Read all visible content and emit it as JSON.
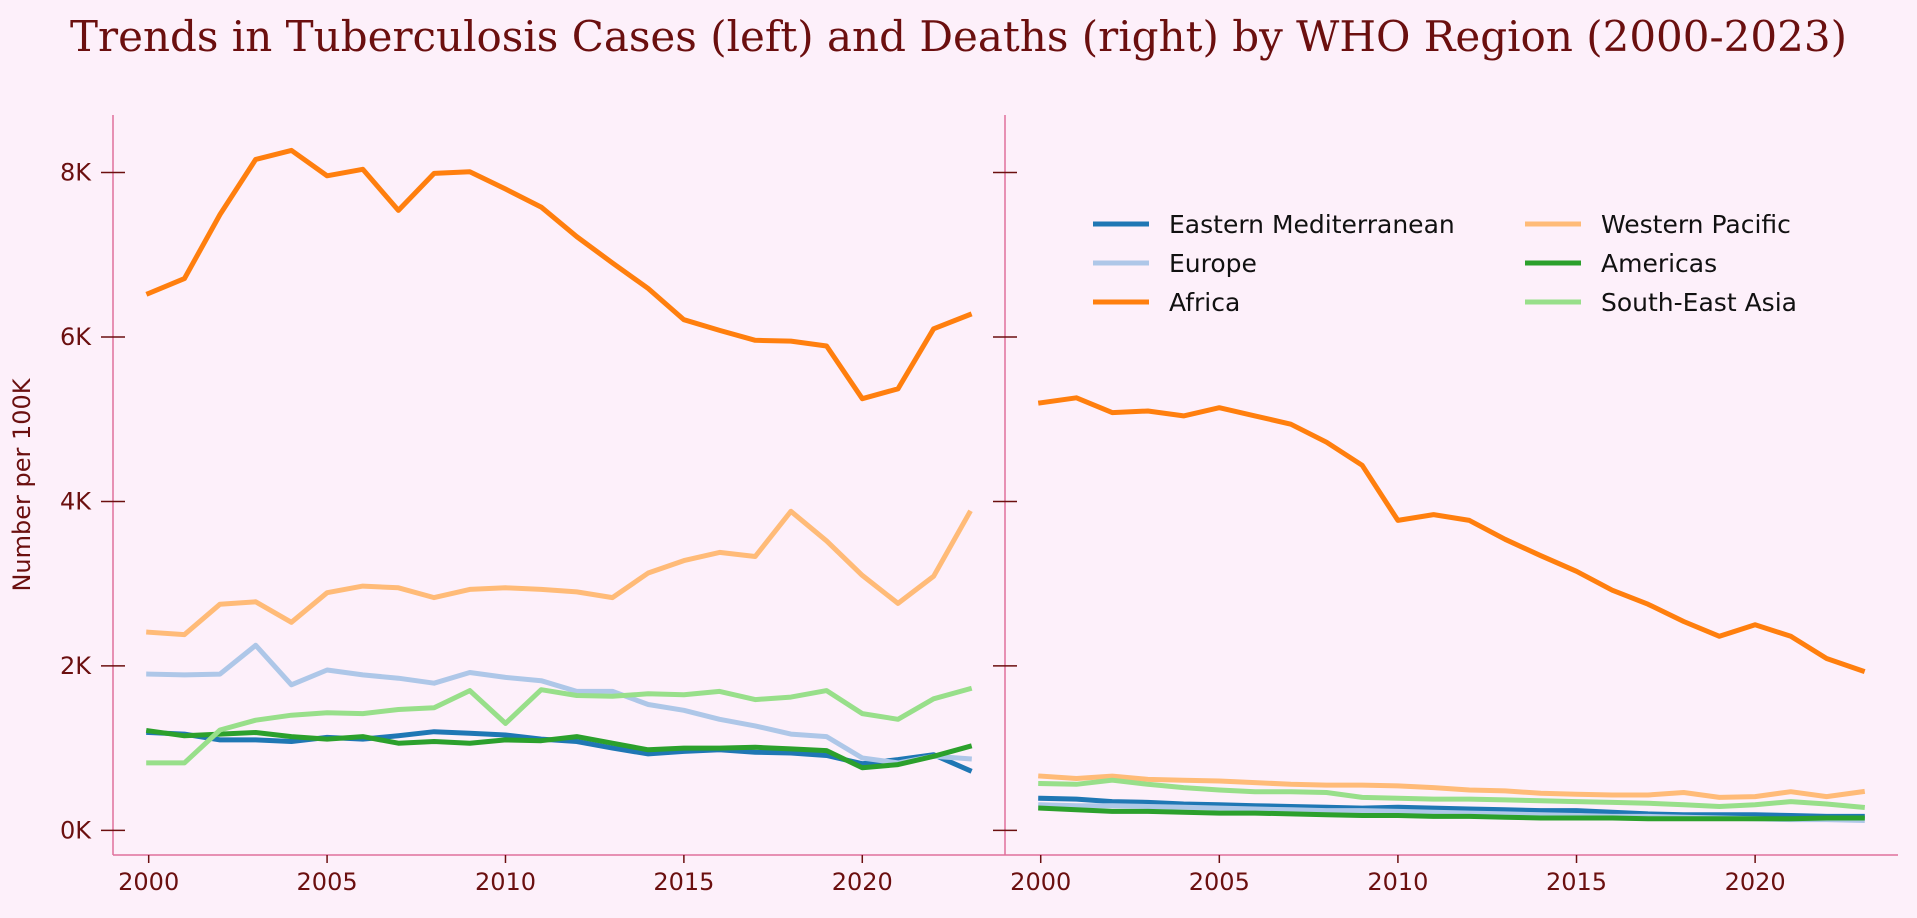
{
  "title": "Trends in Tuberculosis Cases (left) and Deaths (right) by WHO Region (2000-2023)",
  "chart_data": [
    {
      "type": "line",
      "panel": "left",
      "ylabel": "Number per 100K",
      "xlim": [
        1999,
        2024
      ],
      "ylim": [
        -300,
        8700
      ],
      "x_ticks": [
        2000,
        2005,
        2010,
        2015,
        2020
      ],
      "y_ticks": [
        {
          "value": 0,
          "label": "0K"
        },
        {
          "value": 2000,
          "label": "2K"
        },
        {
          "value": 4000,
          "label": "4K"
        },
        {
          "value": 6000,
          "label": "6K"
        },
        {
          "value": 8000,
          "label": "8K"
        }
      ],
      "x": [
        2000,
        2001,
        2002,
        2003,
        2004,
        2005,
        2006,
        2007,
        2008,
        2009,
        2010,
        2011,
        2012,
        2013,
        2014,
        2015,
        2016,
        2017,
        2018,
        2019,
        2020,
        2021,
        2022,
        2023
      ],
      "series": [
        {
          "name": "Eastern Mediterranean",
          "color": "#1f77b4",
          "values": [
            1190,
            1170,
            1100,
            1100,
            1080,
            1130,
            1110,
            1150,
            1200,
            1180,
            1160,
            1110,
            1080,
            1000,
            930,
            960,
            980,
            950,
            940,
            910,
            810,
            860,
            920,
            730
          ]
        },
        {
          "name": "Europe",
          "color": "#aec7e8",
          "values": [
            1900,
            1890,
            1900,
            2250,
            1770,
            1950,
            1890,
            1850,
            1790,
            1920,
            1860,
            1820,
            1690,
            1690,
            1530,
            1460,
            1350,
            1270,
            1170,
            1140,
            880,
            820,
            900,
            870
          ]
        },
        {
          "name": "Africa",
          "color": "#ff7f0e",
          "values": [
            6530,
            6710,
            7490,
            8160,
            8270,
            7960,
            8040,
            7540,
            7990,
            8010,
            7800,
            7580,
            7220,
            6900,
            6590,
            6210,
            6080,
            5960,
            5950,
            5890,
            5250,
            5370,
            6100,
            6270
          ]
        },
        {
          "name": "Western Pacific",
          "color": "#ffbb78",
          "values": [
            2410,
            2380,
            2750,
            2780,
            2530,
            2890,
            2970,
            2950,
            2830,
            2930,
            2950,
            2930,
            2900,
            2830,
            3130,
            3280,
            3380,
            3330,
            3880,
            3520,
            3100,
            2760,
            3090,
            3860
          ]
        },
        {
          "name": "Americas",
          "color": "#2ca02c",
          "values": [
            1210,
            1150,
            1170,
            1190,
            1140,
            1110,
            1140,
            1060,
            1080,
            1060,
            1100,
            1090,
            1140,
            1060,
            980,
            1000,
            1000,
            1010,
            990,
            970,
            760,
            800,
            900,
            1020
          ]
        },
        {
          "name": "South-East Asia",
          "color": "#98df8a",
          "values": [
            820,
            820,
            1220,
            1340,
            1400,
            1430,
            1420,
            1470,
            1490,
            1700,
            1300,
            1710,
            1640,
            1630,
            1660,
            1650,
            1690,
            1590,
            1620,
            1700,
            1420,
            1350,
            1600,
            1720
          ]
        }
      ]
    },
    {
      "type": "line",
      "panel": "right",
      "xlim": [
        1999,
        2024
      ],
      "ylim": [
        -300,
        8700
      ],
      "x_ticks": [
        2000,
        2005,
        2010,
        2015,
        2020
      ],
      "legend": {
        "placement": "top-right",
        "columns": 2
      },
      "x": [
        2000,
        2001,
        2002,
        2003,
        2004,
        2005,
        2006,
        2007,
        2008,
        2009,
        2010,
        2011,
        2012,
        2013,
        2014,
        2015,
        2016,
        2017,
        2018,
        2019,
        2020,
        2021,
        2022,
        2023
      ],
      "series": [
        {
          "name": "Eastern Mediterranean",
          "color": "#1f77b4",
          "values": [
            390,
            380,
            350,
            340,
            320,
            310,
            300,
            290,
            280,
            270,
            280,
            270,
            260,
            250,
            240,
            240,
            220,
            200,
            190,
            190,
            190,
            180,
            170,
            170
          ]
        },
        {
          "name": "Europe",
          "color": "#aec7e8",
          "values": [
            310,
            300,
            300,
            290,
            280,
            270,
            260,
            250,
            240,
            240,
            230,
            220,
            210,
            200,
            190,
            180,
            170,
            170,
            160,
            150,
            140,
            130,
            130,
            120
          ]
        },
        {
          "name": "Africa",
          "color": "#ff7f0e",
          "values": [
            5200,
            5260,
            5080,
            5100,
            5040,
            5140,
            5040,
            4940,
            4720,
            4440,
            3770,
            3840,
            3770,
            3540,
            3340,
            3150,
            2920,
            2750,
            2540,
            2360,
            2500,
            2360,
            2090,
            1940
          ]
        },
        {
          "name": "Western Pacific",
          "color": "#ffbb78",
          "values": [
            660,
            630,
            660,
            620,
            610,
            600,
            580,
            560,
            550,
            550,
            540,
            520,
            490,
            480,
            450,
            440,
            430,
            430,
            460,
            400,
            410,
            470,
            410,
            470
          ]
        },
        {
          "name": "Americas",
          "color": "#2ca02c",
          "values": [
            270,
            250,
            230,
            230,
            220,
            210,
            210,
            200,
            190,
            180,
            180,
            170,
            170,
            160,
            150,
            150,
            150,
            140,
            140,
            140,
            140,
            140,
            150,
            150
          ]
        },
        {
          "name": "South-East Asia",
          "color": "#98df8a",
          "values": [
            570,
            560,
            610,
            560,
            520,
            490,
            470,
            470,
            460,
            400,
            390,
            380,
            380,
            370,
            360,
            350,
            340,
            330,
            310,
            290,
            310,
            350,
            320,
            280
          ]
        }
      ]
    }
  ]
}
